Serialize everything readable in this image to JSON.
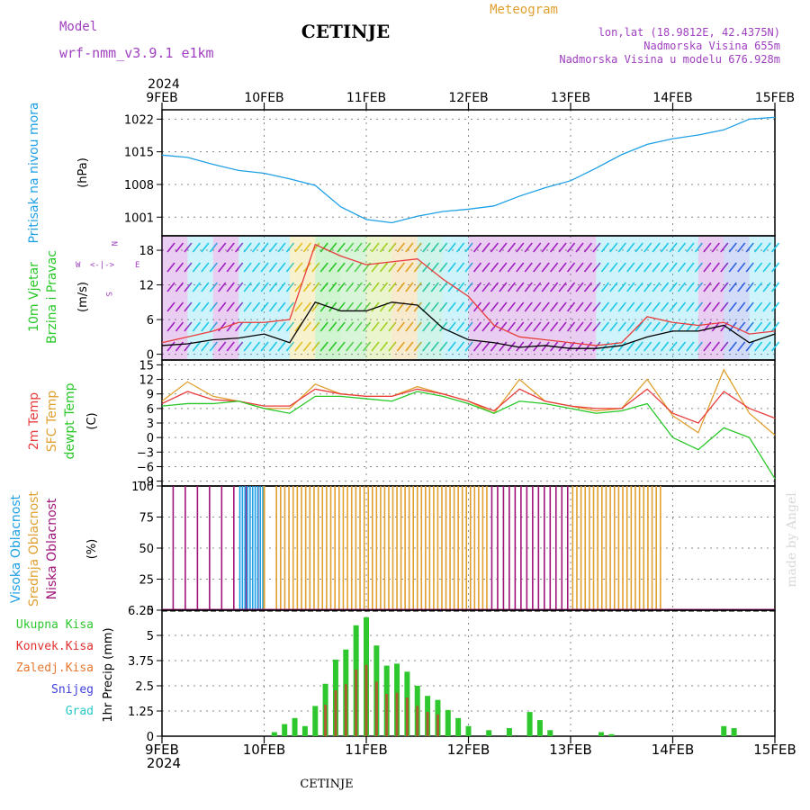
{
  "header": {
    "model_label": "Model",
    "model_name": "wrf-nmm_v3.9.1 e1km",
    "title": "CETINJE",
    "meteogram_label": "Meteogram",
    "lonlat": "lon,lat (18.9812E, 42.4375N)",
    "elevation": "Nadmorska Visina 655m",
    "model_elevation": "Nadmorska Visina u modelu 676.928m",
    "credit": "made by Angel",
    "footer_station": "CETINJE"
  },
  "colors": {
    "pressure": "#1ea0e6",
    "temp2m": "#e83c3c",
    "sfc_temp": "#e0a030",
    "dewpoint": "#28c828",
    "cloud_high": "#1ea0e6",
    "cloud_mid": "#e0a030",
    "cloud_low": "#a0147a",
    "precip_total": "#2ec82e",
    "precip_conv": "#e03030",
    "precip_frozen": "#e87830",
    "snow": "#4040e0",
    "graupel": "#28c8c8",
    "purple_text": "#a040c0",
    "wind_gust": "#e83c3c",
    "wind_speed": "#000000"
  },
  "chart_data": {
    "type": "line",
    "time_axis": {
      "start_year": "2024",
      "end_year": "2024",
      "ticks": [
        "9FEB",
        "10FEB",
        "11FEB",
        "12FEB",
        "13FEB",
        "14FEB",
        "15FEB"
      ]
    },
    "panels": [
      {
        "id": "pressure",
        "ylabel_name": "Pritisak na nivou mora",
        "ylabel_unit": "(hPa)",
        "yticks": [
          "1001",
          "1008",
          "1015",
          "1022"
        ],
        "ylim": [
          997,
          1024
        ],
        "series": [
          {
            "x": [
              0,
              0.25,
              0.5,
              0.75,
              1,
              1.25,
              1.5,
              1.75,
              2,
              2.25,
              2.5,
              2.75,
              3,
              3.25,
              3.5,
              3.75,
              4,
              4.25,
              4.5,
              4.75,
              5,
              5.25,
              5.5,
              5.75,
              6
            ],
            "y": [
              1014.3,
              1013.8,
              1012.3,
              1011.0,
              1010.4,
              1009.2,
              1007.8,
              1003.2,
              1000.5,
              999.8,
              1001.2,
              1002.2,
              1002.7,
              1003.4,
              1005.5,
              1007.3,
              1008.8,
              1011.5,
              1014.4,
              1016.6,
              1017.8,
              1018.6,
              1019.7,
              1022.0,
              1022.4
            ]
          }
        ]
      },
      {
        "id": "wind",
        "ylabel_name": "10m Vjetar",
        "ylabel_name2": "Brzina i Pravac",
        "ylabel_unit": "(m/s)",
        "compass": {
          "n": "N",
          "w": "W",
          "e": "E",
          "s": "S"
        },
        "yticks": [
          "0",
          "6",
          "12",
          "18"
        ],
        "ylim": [
          -1,
          20.5
        ],
        "series": [
          {
            "name": "speed",
            "x": [
              0,
              0.25,
              0.5,
              0.75,
              1,
              1.25,
              1.5,
              1.75,
              2,
              2.25,
              2.5,
              2.75,
              3,
              3.25,
              3.5,
              3.75,
              4,
              4.25,
              4.5,
              4.75,
              5,
              5.25,
              5.5,
              5.75,
              6
            ],
            "y": [
              1.5,
              1.8,
              2.5,
              2.8,
              3.5,
              2.0,
              9.0,
              7.5,
              7.5,
              9.0,
              8.5,
              4.5,
              2.5,
              2.0,
              1.2,
              1.5,
              1.0,
              1.0,
              1.5,
              3.0,
              4.0,
              4.0,
              5.0,
              2.0,
              3.5
            ]
          },
          {
            "name": "gust",
            "x": [
              0,
              0.25,
              0.5,
              0.75,
              1,
              1.25,
              1.5,
              1.75,
              2,
              2.25,
              2.5,
              2.75,
              3,
              3.25,
              3.5,
              3.75,
              4,
              4.25,
              4.5,
              4.75,
              5,
              5.25,
              5.5,
              5.75,
              6
            ],
            "y": [
              2.0,
              3.0,
              4.0,
              5.5,
              5.5,
              6.0,
              19.0,
              17.0,
              15.5,
              16.0,
              16.5,
              13.0,
              10.0,
              5.0,
              3.0,
              2.5,
              2.0,
              1.5,
              2.0,
              6.5,
              5.5,
              5.0,
              5.5,
              3.5,
              4.0
            ]
          }
        ]
      },
      {
        "id": "temperature",
        "ylabel_name": "2m Temp",
        "ylabel_name2": "SFC Temp",
        "ylabel_name3": "dewpt Temp",
        "ylabel_unit": "(C)",
        "yticks": [
          "15",
          "12",
          "9",
          "6",
          "3",
          "0",
          "−3",
          "−6",
          "−9"
        ],
        "ylim": [
          -10,
          16
        ],
        "series": [
          {
            "name": "2m Temp",
            "x": [
              0,
              0.25,
              0.5,
              0.75,
              1,
              1.25,
              1.5,
              1.75,
              2,
              2.25,
              2.5,
              2.75,
              3,
              3.25,
              3.5,
              3.75,
              4,
              4.25,
              4.5,
              4.75,
              5,
              5.25,
              5.5,
              5.75,
              6
            ],
            "y": [
              7.0,
              9.5,
              7.8,
              7.5,
              6.5,
              6.5,
              10.0,
              9.0,
              8.5,
              8.5,
              10.0,
              9.0,
              7.5,
              5.5,
              10.0,
              7.5,
              6.5,
              6.0,
              6.0,
              10.0,
              5.0,
              3.0,
              9.5,
              6.0,
              4.0
            ]
          },
          {
            "name": "SFC Temp",
            "x": [
              0,
              0.25,
              0.5,
              0.75,
              1,
              1.25,
              1.5,
              1.75,
              2,
              2.25,
              2.5,
              2.75,
              3,
              3.25,
              3.5,
              3.75,
              4,
              4.25,
              4.5,
              4.75,
              5,
              5.25,
              5.5,
              5.75,
              6
            ],
            "y": [
              7.5,
              11.5,
              8.5,
              7.5,
              6.0,
              6.0,
              11.0,
              9.0,
              8.5,
              8.5,
              10.5,
              9.0,
              7.5,
              5.0,
              12.0,
              7.5,
              6.5,
              5.5,
              6.0,
              12.0,
              4.5,
              1.0,
              14.0,
              5.0,
              0.5
            ]
          },
          {
            "name": "dewpt Temp",
            "x": [
              0,
              0.25,
              0.5,
              0.75,
              1,
              1.25,
              1.5,
              1.75,
              2,
              2.25,
              2.5,
              2.75,
              3,
              3.25,
              3.5,
              3.75,
              4,
              4.25,
              4.5,
              4.75,
              5,
              5.25,
              5.5,
              5.75,
              6
            ],
            "y": [
              6.5,
              7.0,
              7.0,
              7.5,
              6.0,
              5.0,
              8.5,
              8.5,
              8.0,
              7.5,
              9.5,
              8.5,
              7.0,
              5.0,
              7.5,
              7.0,
              6.0,
              5.0,
              5.5,
              7.0,
              0.0,
              -2.5,
              2.0,
              0.0,
              -8.5
            ]
          }
        ]
      },
      {
        "id": "cloud",
        "ylabel_name": "Visoka Oblacnost",
        "ylabel_name2": "Srednja Oblacnost",
        "ylabel_name3": "Niska Oblacnost",
        "ylabel_unit": "(%)",
        "yticks": [
          "0",
          "25",
          "50",
          "75",
          "100"
        ],
        "ylim": [
          0,
          100
        ]
      },
      {
        "id": "precip",
        "ylabel_unit": "1hr Precip (mm)",
        "yticks": [
          "0",
          "1.25",
          "2.5",
          "3.75",
          "5",
          "6.25"
        ],
        "ylim": [
          0,
          6.25
        ],
        "legend": [
          "Ukupna Kisa",
          "Konvek.Kisa",
          "Zaledj.Kisa",
          "Snijeg",
          "Grad"
        ],
        "series": [
          {
            "name": "Ukupna Kisa",
            "x": [
              1.1,
              1.2,
              1.3,
              1.4,
              1.5,
              1.6,
              1.7,
              1.8,
              1.9,
              2.0,
              2.1,
              2.2,
              2.3,
              2.4,
              2.5,
              2.6,
              2.7,
              2.8,
              2.9,
              3.0,
              3.2,
              3.4,
              3.6,
              3.7,
              3.8,
              4.3,
              4.4,
              4.5,
              5.5,
              5.6
            ],
            "y": [
              0.2,
              0.6,
              0.9,
              0.5,
              1.5,
              2.6,
              3.8,
              4.3,
              5.5,
              5.9,
              4.5,
              3.5,
              3.6,
              3.2,
              2.5,
              2.0,
              1.8,
              1.3,
              0.9,
              0.5,
              0.3,
              0.4,
              1.2,
              0.8,
              0.3,
              0.2,
              0.1,
              0.0,
              0.5,
              0.4
            ]
          }
        ]
      }
    ]
  }
}
